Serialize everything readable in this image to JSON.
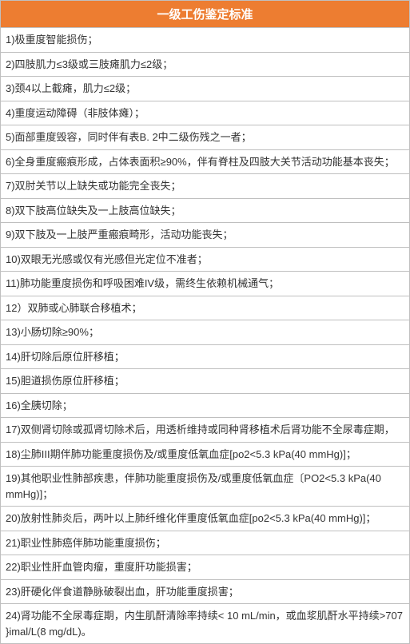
{
  "table": {
    "title": "一级工伤鉴定标准",
    "header_bg_color": "#ed7d31",
    "header_text_color": "#ffffff",
    "border_color": "#bfbfbf",
    "cell_bg_color": "#ffffff",
    "cell_text_color": "#333333",
    "title_fontsize": 15,
    "cell_fontsize": 13,
    "rows": [
      "1)极重度智能损伤；",
      "2)四肢肌力≤3级或三肢瘫肌力≤2级；",
      "3)颈4以上截瘫，肌力≤2级；",
      "4)重度运动障碍（非肢体瘫）；",
      "5)面部重度毁容，同时伴有表B. 2中二级伤残之一者；",
      "6)全身重度瘢痕形成，占体表面积≥90%，伴有脊柱及四肢大关节活动功能基本丧失；",
      "7)双肘关节以上缺失或功能完全丧失；",
      "8)双下肢高位缺失及一上肢高位缺失；",
      "9)双下肢及一上肢严重瘢痕畸形，活动功能丧失；",
      "10)双眼无光感或仅有光感但光定位不准者；",
      "11)肺功能重度损伤和呼吸困难IV级，需终生依赖机械通气；",
      "12）双肺或心肺联合移植术；",
      "13)小肠切除≥90%；",
      "14)肝切除后原位肝移植；",
      "15)胆道损伤原位肝移植；",
      "16)全胰切除；",
      "17)双侧肾切除或孤肾切除术后，用透析维持或同种肾移植术后肾功能不全尿毒症期，",
      "18)尘肺III期伴肺功能重度损伤及/或重度低氧血症[po2<5.3 kPa(40 mmHg)]；",
      "19)其他职业性肺部疾患，伴肺功能重度损伤及/或重度低氧血症〔PO2<5.3 kPa(40 mmHg)]；",
      "20)放射性肺炎后，两叶以上肺纤维化伴重度低氧血症[po2<5.3 kPa(40 mmHg)]；",
      "21)职业性肺癌伴肺功能重度损伤；",
      "22)职业性肝血管肉瘤，重度肝功能损害；",
      "23)肝硬化伴食道静脉破裂出血，肝功能重度损害；",
      "24)肾功能不全尿毒症期，内生肌酐清除率持续< 10 mL/min，或血浆肌酐水平持续>707 }imal/L(8 mg/dL)。"
    ]
  }
}
